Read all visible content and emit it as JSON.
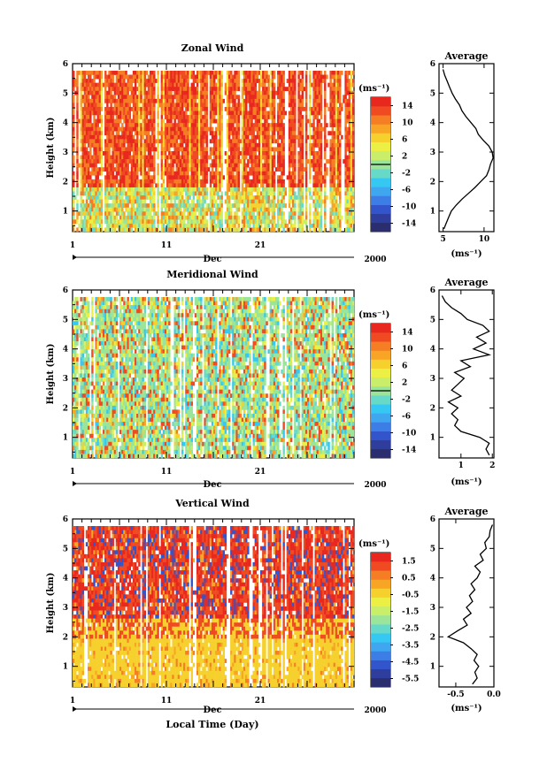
{
  "figure": {
    "time_xlabel": "Local Time (Day)",
    "month": "Dec",
    "year": "2000",
    "day_ticks": [
      "1",
      "11",
      "21"
    ],
    "height_ylabel": "Height (km)",
    "unit_label": "(ms⁻¹)",
    "average_title": "Average"
  },
  "colors": {
    "colormap": [
      "#2a2d6e",
      "#2f3e9c",
      "#3355cc",
      "#3c7ee6",
      "#3fa6f0",
      "#35c8f2",
      "#66d9c8",
      "#9be59a",
      "#c8ee6a",
      "#ecf044",
      "#f6d12e",
      "#f8a424",
      "#f57d23",
      "#ef4a22",
      "#e8281f"
    ]
  },
  "chart_data": [
    {
      "type": "heatmap",
      "title": "Zonal Wind",
      "xlabel": "Local Time (Day)",
      "ylabel": "Height (km)",
      "x_ticks": [
        "1",
        "11",
        "21"
      ],
      "xlim": [
        1,
        31
      ],
      "y_ticks": [
        "1",
        "2",
        "3",
        "4",
        "5",
        "6"
      ],
      "ylim": [
        0.3,
        6
      ],
      "colorbar_label": "(ms⁻¹)",
      "colorbar_ticks": [
        "14",
        "10",
        "6",
        "2",
        "-2",
        "-6",
        "-10",
        "-14"
      ],
      "colorbar_range": [
        -16,
        16
      ],
      "colorbar_line": 0,
      "profile": {
        "title": "Average",
        "x_ticks": [
          "5",
          "10"
        ],
        "xlim": [
          4.5,
          11.2
        ],
        "xlabel": "(ms⁻¹)",
        "heights": [
          0.4,
          0.6,
          0.8,
          1.0,
          1.2,
          1.4,
          1.6,
          1.8,
          2.0,
          2.2,
          2.4,
          2.6,
          2.8,
          3.0,
          3.2,
          3.4,
          3.6,
          3.8,
          4.0,
          4.2,
          4.4,
          4.6,
          4.8,
          5.0,
          5.2,
          5.4,
          5.6,
          5.8
        ],
        "values": [
          5.1,
          5.4,
          5.7,
          6.0,
          6.6,
          7.3,
          8.1,
          8.9,
          9.6,
          10.3,
          10.6,
          10.8,
          11.1,
          11.0,
          10.6,
          9.9,
          9.3,
          9.0,
          8.4,
          7.8,
          7.3,
          7.0,
          6.5,
          6.1,
          5.8,
          5.5,
          5.2,
          5.0
        ]
      }
    },
    {
      "type": "heatmap",
      "title": "Meridional Wind",
      "xlabel": "Local Time (Day)",
      "ylabel": "Height (km)",
      "x_ticks": [
        "1",
        "11",
        "21"
      ],
      "xlim": [
        1,
        31
      ],
      "y_ticks": [
        "1",
        "2",
        "3",
        "4",
        "5",
        "6"
      ],
      "ylim": [
        0.3,
        6
      ],
      "colorbar_label": "(ms⁻¹)",
      "colorbar_ticks": [
        "14",
        "10",
        "6",
        "2",
        "-2",
        "-6",
        "-10",
        "-14"
      ],
      "colorbar_range": [
        -16,
        16
      ],
      "colorbar_line": 0,
      "profile": {
        "title": "Average",
        "x_ticks": [
          "1",
          "2"
        ],
        "xlim": [
          0.3,
          2.05
        ],
        "xlabel": "(ms⁻¹)",
        "heights": [
          0.4,
          0.6,
          0.8,
          1.0,
          1.2,
          1.4,
          1.6,
          1.8,
          2.0,
          2.2,
          2.4,
          2.6,
          2.8,
          3.0,
          3.2,
          3.4,
          3.6,
          3.8,
          4.0,
          4.2,
          4.4,
          4.6,
          4.8,
          5.0,
          5.2,
          5.4,
          5.6,
          5.8
        ],
        "values": [
          1.9,
          1.8,
          1.9,
          1.6,
          1.0,
          0.8,
          0.9,
          0.7,
          0.9,
          0.6,
          1.0,
          0.7,
          0.9,
          1.1,
          0.8,
          1.3,
          1.0,
          1.9,
          1.4,
          1.8,
          1.5,
          1.9,
          1.7,
          1.2,
          1.0,
          0.7,
          0.5,
          0.4
        ]
      }
    },
    {
      "type": "heatmap",
      "title": "Vertical Wind",
      "xlabel": "Local Time (Day)",
      "ylabel": "Height (km)",
      "x_ticks": [
        "1",
        "11",
        "21"
      ],
      "xlim": [
        1,
        31
      ],
      "y_ticks": [
        "1",
        "2",
        "3",
        "4",
        "5",
        "6"
      ],
      "ylim": [
        0.3,
        6
      ],
      "colorbar_label": "(ms⁻¹)",
      "colorbar_ticks": [
        "1.5",
        "0.5",
        "-0.5",
        "-1.5",
        "-2.5",
        "-3.5",
        "-4.5",
        "-5.5"
      ],
      "colorbar_range": [
        -6,
        2
      ],
      "colorbar_line": null,
      "profile": {
        "title": "Average",
        "x_ticks": [
          "-0.5",
          "0.0"
        ],
        "xlim": [
          -0.72,
          0.0
        ],
        "xlabel": "(ms⁻¹)",
        "heights": [
          0.4,
          0.6,
          0.8,
          1.0,
          1.2,
          1.4,
          1.6,
          1.8,
          2.0,
          2.2,
          2.4,
          2.6,
          2.8,
          3.0,
          3.2,
          3.4,
          3.6,
          3.8,
          4.0,
          4.2,
          4.4,
          4.6,
          4.8,
          5.0,
          5.2,
          5.4,
          5.6,
          5.8
        ],
        "values": [
          -0.28,
          -0.22,
          -0.25,
          -0.2,
          -0.26,
          -0.22,
          -0.3,
          -0.4,
          -0.6,
          -0.48,
          -0.35,
          -0.4,
          -0.3,
          -0.36,
          -0.28,
          -0.32,
          -0.25,
          -0.3,
          -0.22,
          -0.18,
          -0.25,
          -0.14,
          -0.18,
          -0.1,
          -0.12,
          -0.06,
          -0.05,
          -0.02
        ]
      }
    }
  ]
}
